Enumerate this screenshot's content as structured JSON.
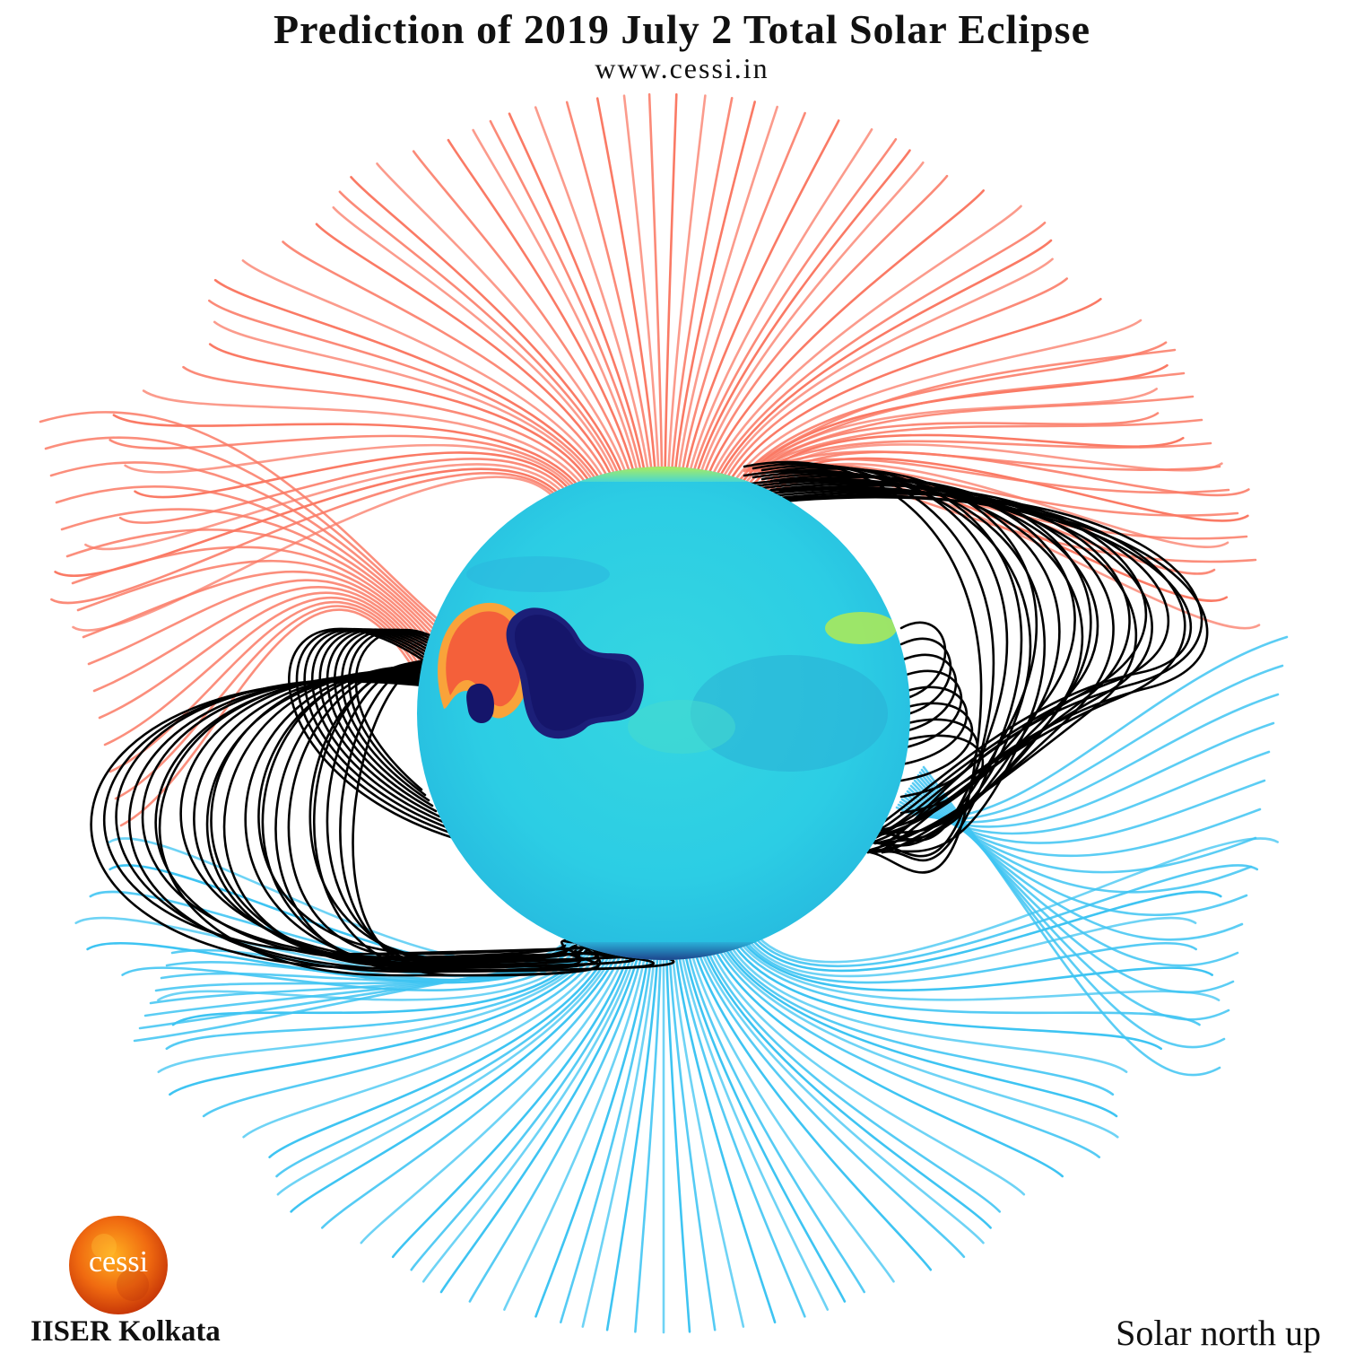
{
  "header": {
    "title": "Prediction of 2019 July 2 Total Solar Eclipse",
    "website": "www.cessi.in"
  },
  "logo": {
    "text": "cessi"
  },
  "footer": {
    "institution": "IISER Kolkata",
    "orientation": "Solar north up"
  },
  "colors": {
    "open_field_positive": "#fa7a65",
    "open_field_negative": "#3ec4f2",
    "closed_field": "#000000",
    "sphere_base": "#2fcfe3",
    "positive_patch": "#f4603a",
    "negative_patch": "#15156a"
  }
}
